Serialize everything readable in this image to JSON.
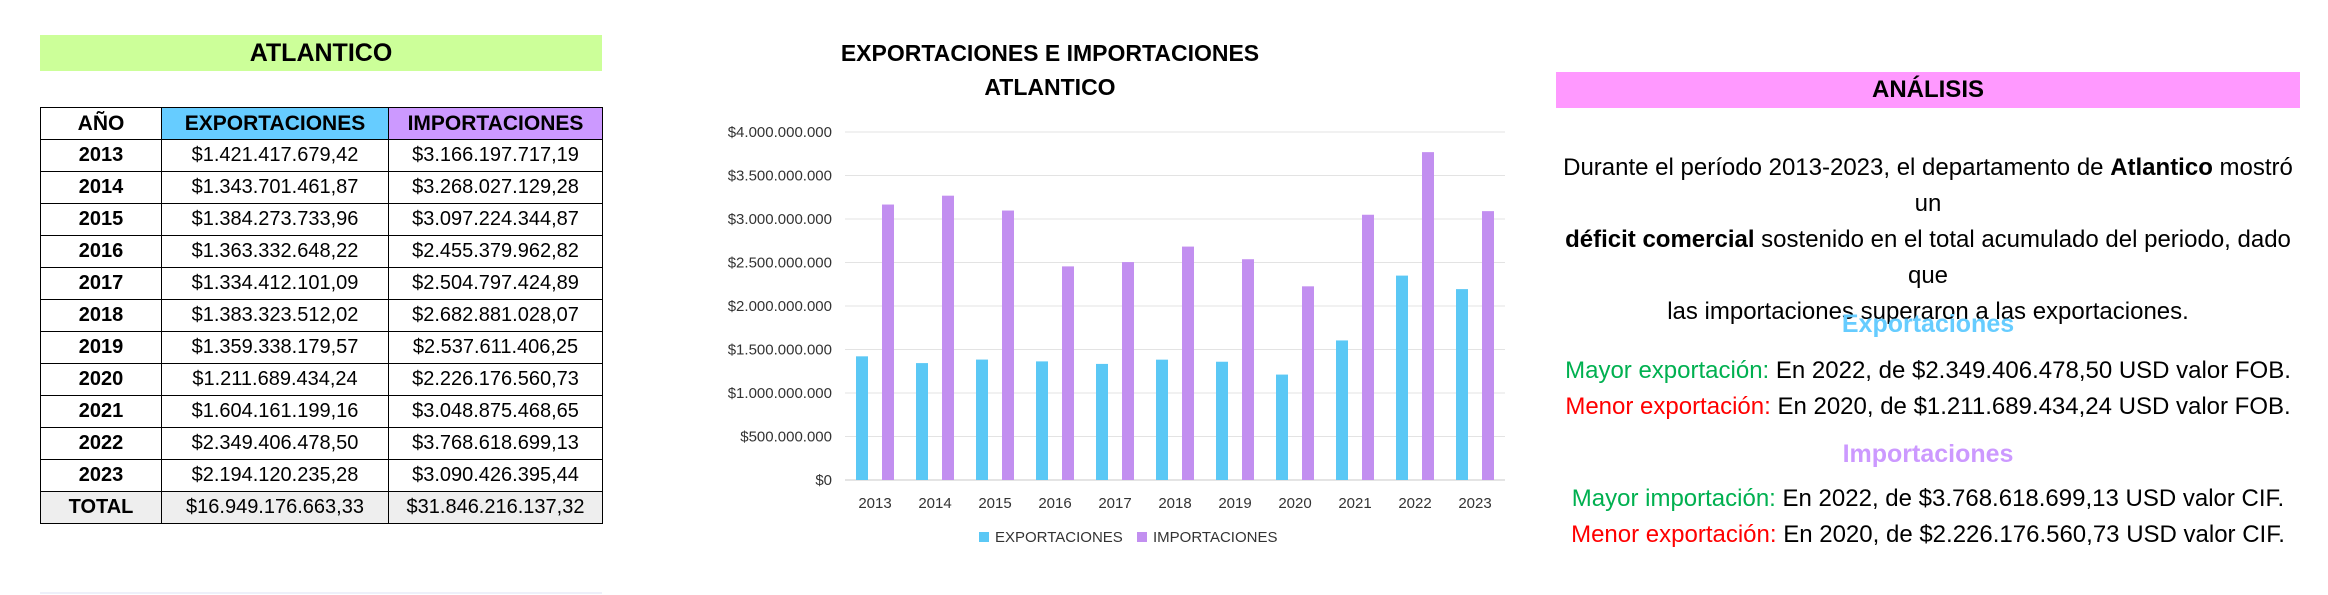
{
  "table": {
    "title": "ATLANTICO",
    "headers": [
      "AÑO",
      "EXPORTACIONES",
      "IMPORTACIONES"
    ],
    "rows": [
      [
        "2013",
        "$1.421.417.679,42",
        "$3.166.197.717,19"
      ],
      [
        "2014",
        "$1.343.701.461,87",
        "$3.268.027.129,28"
      ],
      [
        "2015",
        "$1.384.273.733,96",
        "$3.097.224.344,87"
      ],
      [
        "2016",
        "$1.363.332.648,22",
        "$2.455.379.962,82"
      ],
      [
        "2017",
        "$1.334.412.101,09",
        "$2.504.797.424,89"
      ],
      [
        "2018",
        "$1.383.323.512,02",
        "$2.682.881.028,07"
      ],
      [
        "2019",
        "$1.359.338.179,57",
        "$2.537.611.406,25"
      ],
      [
        "2020",
        "$1.211.689.434,24",
        "$2.226.176.560,73"
      ],
      [
        "2021",
        "$1.604.161.199,16",
        "$3.048.875.468,65"
      ],
      [
        "2022",
        "$2.349.406.478,50",
        "$3.768.618.699,13"
      ],
      [
        "2023",
        "$2.194.120.235,28",
        "$3.090.426.395,44"
      ]
    ],
    "total": [
      "TOTAL",
      "$16.949.176.663,33",
      "$31.846.216.137,32"
    ],
    "colors": {
      "export_header": "#66ccff",
      "import_header": "#cc99ff",
      "title_bg": "#ccff99"
    }
  },
  "chart_data": {
    "type": "bar",
    "title": [
      "EXPORTACIONES E IMPORTACIONES",
      "ATLANTICO"
    ],
    "categories": [
      "2013",
      "2014",
      "2015",
      "2016",
      "2017",
      "2018",
      "2019",
      "2020",
      "2021",
      "2022",
      "2023"
    ],
    "series": [
      {
        "name": "EXPORTACIONES",
        "color": "#5bc8f5",
        "values": [
          1421417679.42,
          1343701461.87,
          1384273733.96,
          1363332648.22,
          1334412101.09,
          1383323512.02,
          1359338179.57,
          1211689434.24,
          1604161199.16,
          2349406478.5,
          2194120235.28
        ]
      },
      {
        "name": "IMPORTACIONES",
        "color": "#c28ff0",
        "values": [
          3166197717.19,
          3268027129.28,
          3097224344.87,
          2455379962.82,
          2504797424.89,
          2682881028.07,
          2537611406.25,
          2226176560.73,
          3048875468.65,
          3768618699.13,
          3090426395.44
        ]
      }
    ],
    "ylim": [
      0,
      4000000000
    ],
    "yticks": [
      0,
      500000000,
      1000000000,
      1500000000,
      2000000000,
      2500000000,
      3000000000,
      3500000000,
      4000000000
    ],
    "ytick_labels": [
      "$0",
      "$500.000.000",
      "$1.000.000.000",
      "$1.500.000.000",
      "$2.000.000.000",
      "$2.500.000.000",
      "$3.000.000.000",
      "$3.500.000.000",
      "$4.000.000.000"
    ],
    "grid": true,
    "legend": "bottom"
  },
  "analysis": {
    "title": "ANÁLISIS",
    "para": {
      "l1a": "Durante el período 2013-2023, el departamento de ",
      "l1b": "Atlantico",
      "l1c": " mostró un",
      "l2a": "déficit comercial",
      "l2b": " sostenido en el total acumulado del periodo, dado que",
      "l3": "las importaciones superaron a las exportaciones."
    },
    "exp_title": "Exportaciones",
    "exp_max_label": "Mayor exportación:",
    "exp_max_text": " En 2022, de $2.349.406.478,50 USD valor FOB.",
    "exp_min_label": "Menor exportación:",
    "exp_min_text": " En 2020, de $1.211.689.434,24 USD valor FOB.",
    "imp_title": "Importaciones",
    "imp_max_label": "Mayor importación:",
    "imp_max_text": " En 2022, de $3.768.618.699,13 USD valor CIF.",
    "imp_min_label": "Menor exportación:",
    "imp_min_text": " En 2020, de $2.226.176.560,73 USD valor CIF.",
    "colors": {
      "bar_bg": "#ff99ff",
      "exp_title": "#66ccff",
      "imp_title": "#cc99ff",
      "green": "#00b050",
      "red": "#ff0000"
    }
  }
}
